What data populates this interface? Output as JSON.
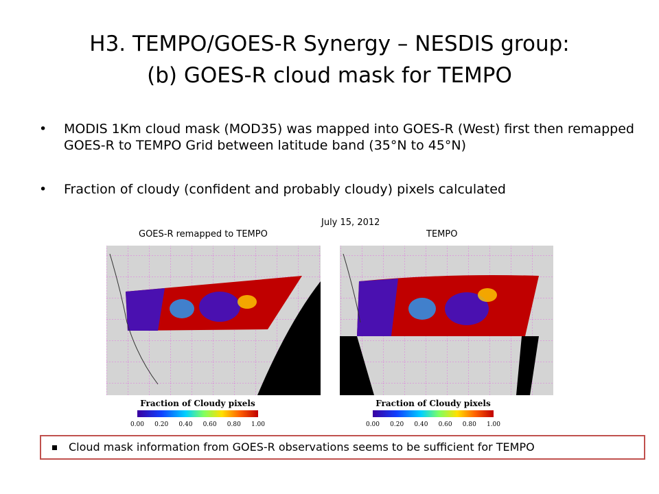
{
  "title": {
    "line1": "H3. TEMPO/GOES-R Synergy – NESDIS group:",
    "line2": "(b) GOES-R cloud mask for TEMPO"
  },
  "bullets": [
    "MODIS 1Km cloud mask (MOD35) was mapped into GOES-R (West) first then remapped GOES-R to TEMPO Grid between latitude band (35°N to 45°N)",
    "Fraction of cloudy (confident and probably cloudy) pixels calculated"
  ],
  "figure": {
    "date": "July 15, 2012",
    "panels": [
      {
        "label": "GOES-R remapped to TEMPO",
        "colorbar_title": "Fraction of Cloudy pixels",
        "colorbar_ticks": [
          "0.00",
          "0.20",
          "0.40",
          "0.60",
          "0.80",
          "1.00"
        ]
      },
      {
        "label": "TEMPO",
        "colorbar_title": "Fraction of Cloudy pixels",
        "colorbar_ticks": [
          "0.00",
          "0.20",
          "0.40",
          "0.60",
          "0.80",
          "1.00"
        ]
      }
    ]
  },
  "footer": "Cloud mask information from GOES-R observations seems to be sufficient for TEMPO"
}
